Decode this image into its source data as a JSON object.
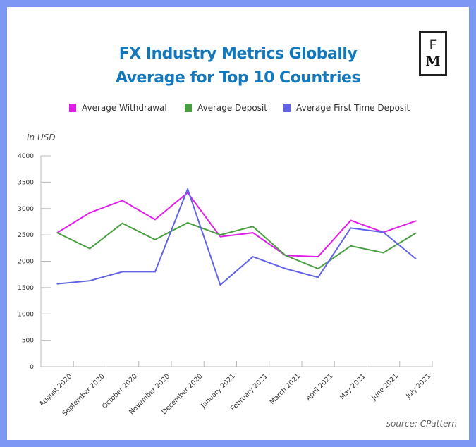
{
  "chart_data": {
    "type": "line",
    "title": "FX Industry Metrics Globally",
    "subtitle": "Average for Top 10 Countries",
    "xlabel": "",
    "ylabel": "In USD",
    "ylim": [
      0,
      4000
    ],
    "yticks": [
      0,
      500,
      1000,
      1500,
      2000,
      2500,
      3000,
      3500,
      4000
    ],
    "grid": false,
    "legend_position": "top",
    "categories": [
      "August 2020",
      "September 2020",
      "October 2020",
      "November 2020",
      "December 2020",
      "January 2021",
      "February 2021",
      "March 2021",
      "April 2021",
      "May 2021",
      "June 2021",
      "July 2021"
    ],
    "series": [
      {
        "name": "Average Withdrawal",
        "color": "#e01ee6",
        "values": [
          2540,
          2920,
          3150,
          2790,
          3300,
          2465,
          2540,
          2110,
          2085,
          2775,
          2550,
          2765
        ]
      },
      {
        "name": "Average Deposit",
        "color": "#4a9e42",
        "values": [
          2540,
          2240,
          2720,
          2410,
          2730,
          2500,
          2660,
          2110,
          1860,
          2290,
          2160,
          2535
        ]
      },
      {
        "name": "Average First Time Deposit",
        "color": "#6163e6",
        "values": [
          1570,
          1630,
          1800,
          1800,
          3370,
          1550,
          2085,
          1860,
          1695,
          2630,
          2550,
          2045
        ]
      }
    ],
    "source": "source: CPattern"
  },
  "logo": {
    "top": "F",
    "bottom": "M"
  }
}
